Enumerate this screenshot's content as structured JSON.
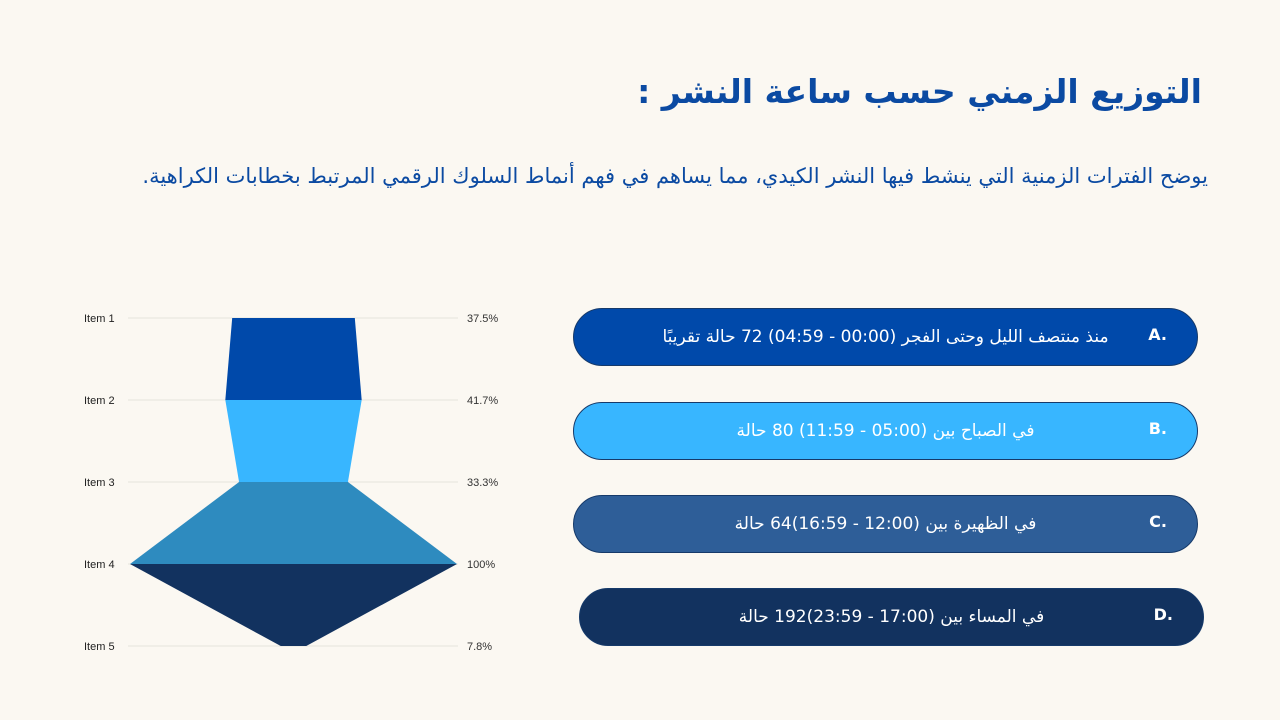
{
  "title": "التوزيع الزمني حسب ساعة النشر :",
  "description": "يوضح الفترات الزمنية التي ينشط فيها النشر الكيدي، مما يساهم في فهم أنماط السلوك الرقمي المرتبط بخطابات الكراهية.",
  "chart_data": {
    "type": "area",
    "categories": [
      "Item 1",
      "Item 2",
      "Item 3",
      "Item 4",
      "Item 5"
    ],
    "values": [
      37.5,
      41.7,
      33.3,
      100,
      7.8
    ],
    "value_labels": [
      "37.5%",
      "41.7%",
      "33.3%",
      "100%",
      "7.8%"
    ],
    "segment_colors": [
      "#0049AA",
      "#38B6FF",
      "#2E8BBF",
      "#12325F"
    ],
    "grid": true
  },
  "cards": [
    {
      "letter": "A.",
      "text": "منذ منتصف الليل وحتى الفجر (00:00 - 04:59) 72 حالة تقريبًا",
      "color": "#0049AA",
      "text_color": "#ffffff"
    },
    {
      "letter": "B.",
      "text": "في الصباح بين (05:00 - 11:59) 80 حالة",
      "color": "#38B6FF",
      "text_color": "#ffffff"
    },
    {
      "letter": "C.",
      "text": "في الظهيرة بين (12:00 - 16:59)64 حالة",
      "color": "#2E5E98",
      "text_color": "#ffffff"
    },
    {
      "letter": "D.",
      "text": "في المساء بين (17:00 - 23:59)192 حالة",
      "color": "#12325F",
      "text_color": "#ffffff"
    }
  ]
}
